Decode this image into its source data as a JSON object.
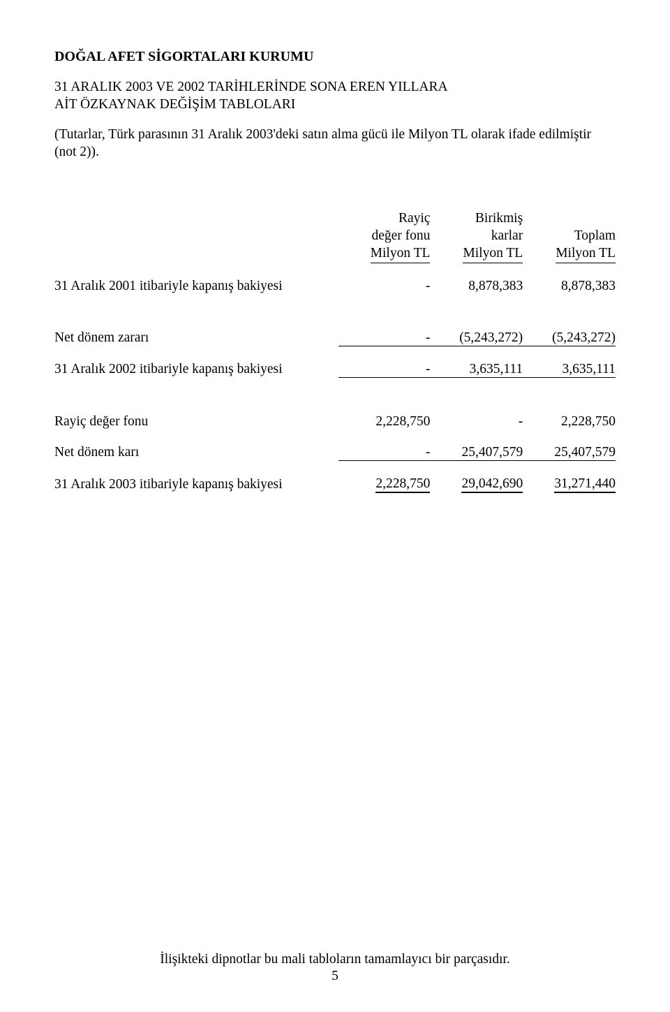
{
  "title": "DOĞAL AFET SİGORTALARI KURUMU",
  "subtitle_line1": "31 ARALIK 2003 VE 2002 TARİHLERİNDE SONA EREN  YILLARA",
  "subtitle_line2": "AİT ÖZKAYNAK DEĞİŞİM TABLOLARI",
  "note": "(Tutarlar, Türk parasının 31 Aralık 2003'deki satın alma gücü ile Milyon TL olarak ifade edilmiştir (not 2)).",
  "headers": {
    "col1": {
      "l1": "Rayiç",
      "l2": "değer fonu",
      "l3": "Milyon TL"
    },
    "col2": {
      "l1": "Birikmiş",
      "l2": "karlar",
      "l3": "Milyon TL"
    },
    "col3": {
      "l1": "",
      "l2": "Toplam",
      "l3": "Milyon TL"
    }
  },
  "rows": {
    "r1": {
      "label": "31 Aralık 2001 itibariyle kapanış bakiyesi",
      "c1": "-",
      "c2": "8,878,383",
      "c3": "8,878,383"
    },
    "r2": {
      "label": "Net dönem zararı",
      "c1": "-",
      "c2": "(5,243,272)",
      "c3": "(5,243,272)"
    },
    "r3": {
      "label": "31 Aralık 2002 itibariyle kapanış bakiyesi",
      "c1": "-",
      "c2": "3,635,111",
      "c3": "3,635,111"
    },
    "r4": {
      "label": "Rayiç değer fonu",
      "c1": "2,228,750",
      "c2": "-",
      "c3": "2,228,750"
    },
    "r5": {
      "label": "Net dönem karı",
      "c1": "-",
      "c2": "25,407,579",
      "c3": "25,407,579"
    },
    "r6": {
      "label": "31 Aralık 2003 itibariyle kapanış bakiyesi",
      "c1": "2,228,750",
      "c2": "29,042,690",
      "c3": "31,271,440"
    }
  },
  "footer_text": "İlişikteki dipnotlar bu mali tabloların tamamlayıcı bir parçasıdır.",
  "page_number": "5"
}
